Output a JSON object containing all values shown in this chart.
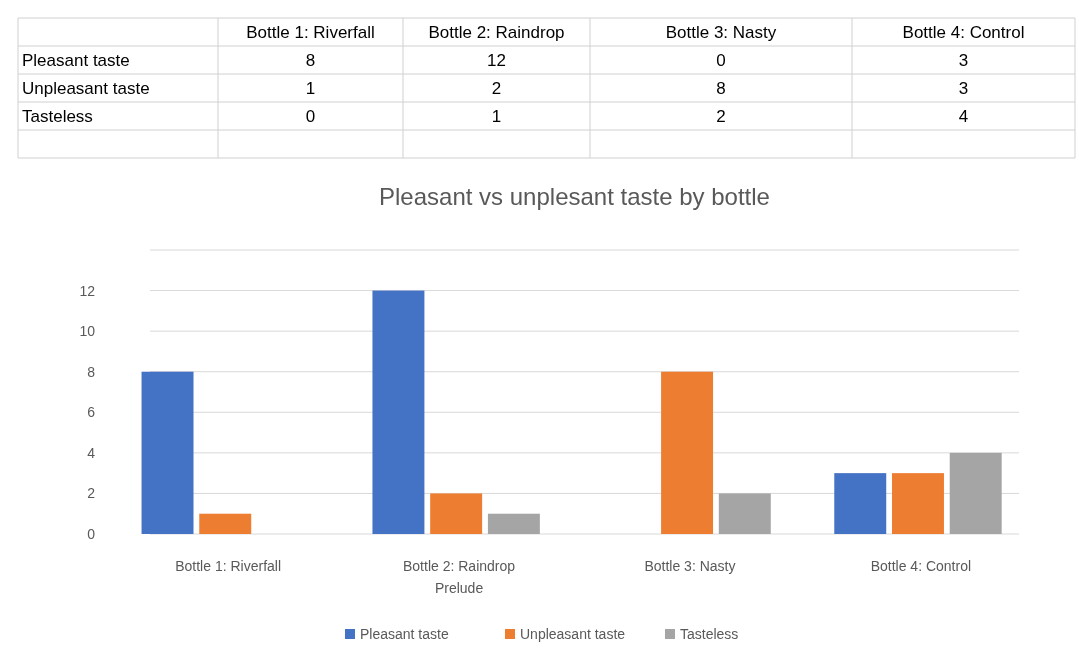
{
  "chart_data": [
    {
      "type": "heatmap",
      "categories": [
        "Bottle 1: Riverfall",
        "Bottle 2: Raindrop",
        "Bottle 3: Nasty",
        "Bottle 4: Control"
      ],
      "y_categories": [
        "Pleasant taste",
        "Unpleasant taste",
        "Tasteless"
      ],
      "cells": [
        [
          8,
          12,
          0,
          3
        ],
        [
          1,
          2,
          8,
          3
        ],
        [
          0,
          1,
          2,
          4
        ]
      ],
      "data_labels": true
    },
    {
      "type": "bar",
      "title": "Pleasant vs unplesant taste by bottle",
      "categories": [
        "Bottle 1: Riverfall",
        "Bottle 2: Raindrop Prelude",
        "Bottle 3: Nasty",
        "Bottle 4: Control"
      ],
      "series": [
        {
          "name": "Pleasant taste",
          "color": "#4472c4",
          "values": [
            8,
            12,
            0,
            3
          ]
        },
        {
          "name": "Unpleasant taste",
          "color": "#ed7d31",
          "values": [
            1,
            2,
            8,
            3
          ]
        },
        {
          "name": "Tasteless",
          "color": "#a5a5a5",
          "values": [
            0,
            1,
            2,
            4
          ]
        }
      ],
      "ylim": [
        0,
        14
      ],
      "yticks": [
        0,
        2,
        4,
        6,
        8,
        10,
        12
      ],
      "grid": "y",
      "legend": "bottom"
    }
  ]
}
